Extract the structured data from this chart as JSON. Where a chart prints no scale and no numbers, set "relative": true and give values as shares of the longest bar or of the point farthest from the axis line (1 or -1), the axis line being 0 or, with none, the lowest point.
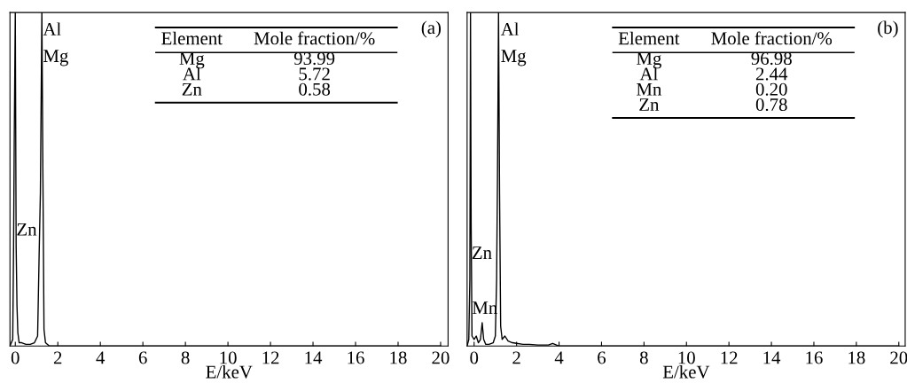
{
  "chart_data": [
    {
      "type": "line",
      "relative": true,
      "xlabel": "E/keV",
      "xlim": [
        -0.25,
        20.35
      ],
      "xticks": [
        0,
        2,
        4,
        6,
        8,
        10,
        12,
        14,
        16,
        18,
        20
      ],
      "tick_labels": "x",
      "grid": false,
      "legend": false,
      "marker": "none",
      "line_style": "solid",
      "series": [
        {
          "color": "#000000",
          "x": [
            -0.25,
            -0.12,
            -0.08,
            -0.05,
            0.0,
            0.04,
            0.08,
            0.12,
            0.18,
            0.3,
            0.5,
            0.7,
            0.9,
            1.05,
            1.12,
            1.18,
            1.25,
            1.3,
            1.35,
            1.42,
            1.6,
            3.0,
            20.0
          ],
          "values": [
            0,
            0.02,
            0.3,
            0.61,
            1,
            0.3,
            0.12,
            0.04,
            0.01,
            0.01,
            0.005,
            0.005,
            0.01,
            0.03,
            0.27,
            0.46,
            1,
            0.5,
            0.05,
            0.01,
            0,
            0,
            0
          ]
        }
      ],
      "annotations": [
        "(a)",
        {
          "text": "Al",
          "x": 1.3,
          "y": 0.97
        },
        {
          "text": "Mg",
          "x": 1.3,
          "y": 0.89
        },
        {
          "text": "Zn",
          "x": 0.05,
          "y": 0.37
        },
        "Element",
        "Mole fraction/%",
        "Mg",
        "93.99",
        "Al",
        "5.72",
        "Zn",
        "0.58"
      ]
    },
    {
      "type": "line",
      "relative": true,
      "xlabel": "E/keV",
      "xlim": [
        -0.33,
        20.3
      ],
      "xticks": [
        0,
        2,
        4,
        6,
        8,
        10,
        12,
        14,
        16,
        18,
        20
      ],
      "tick_labels": "x",
      "grid": false,
      "legend": false,
      "marker": "none",
      "line_style": "solid",
      "series": [
        {
          "color": "#000000",
          "x": [
            -0.33,
            -0.25,
            -0.2,
            -0.17,
            -0.14,
            -0.1,
            0.0,
            0.1,
            0.2,
            0.3,
            0.38,
            0.45,
            0.55,
            0.7,
            0.9,
            1.0,
            1.06,
            1.1,
            1.15,
            1.2,
            1.25,
            1.32,
            1.45,
            1.6,
            1.8,
            2.0,
            2.3,
            2.6,
            3.0,
            3.5,
            3.7,
            4.0,
            20.0
          ],
          "values": [
            0,
            0.02,
            0.2,
            1,
            0.37,
            0.03,
            0.02,
            0.03,
            0.01,
            0.02,
            0.07,
            0.02,
            0.005,
            0.005,
            0.01,
            0.03,
            0.2,
            0.5,
            1,
            0.45,
            0.06,
            0.02,
            0.03,
            0.015,
            0.01,
            0.008,
            0.005,
            0.005,
            0.003,
            0.003,
            0.008,
            0,
            0
          ]
        }
      ],
      "annotations": [
        "(b)",
        {
          "text": "Al",
          "x": 1.25,
          "y": 0.97
        },
        {
          "text": "Mg",
          "x": 1.25,
          "y": 0.89
        },
        {
          "text": "Zn",
          "x": -0.12,
          "y": 0.3
        },
        {
          "text": "Mn",
          "x": -0.1,
          "y": 0.135
        },
        "Element",
        "Mole fraction/%",
        "Mg",
        "96.98",
        "Al",
        "2.44",
        "Mn",
        "0.20",
        "Zn",
        "0.78"
      ]
    }
  ]
}
